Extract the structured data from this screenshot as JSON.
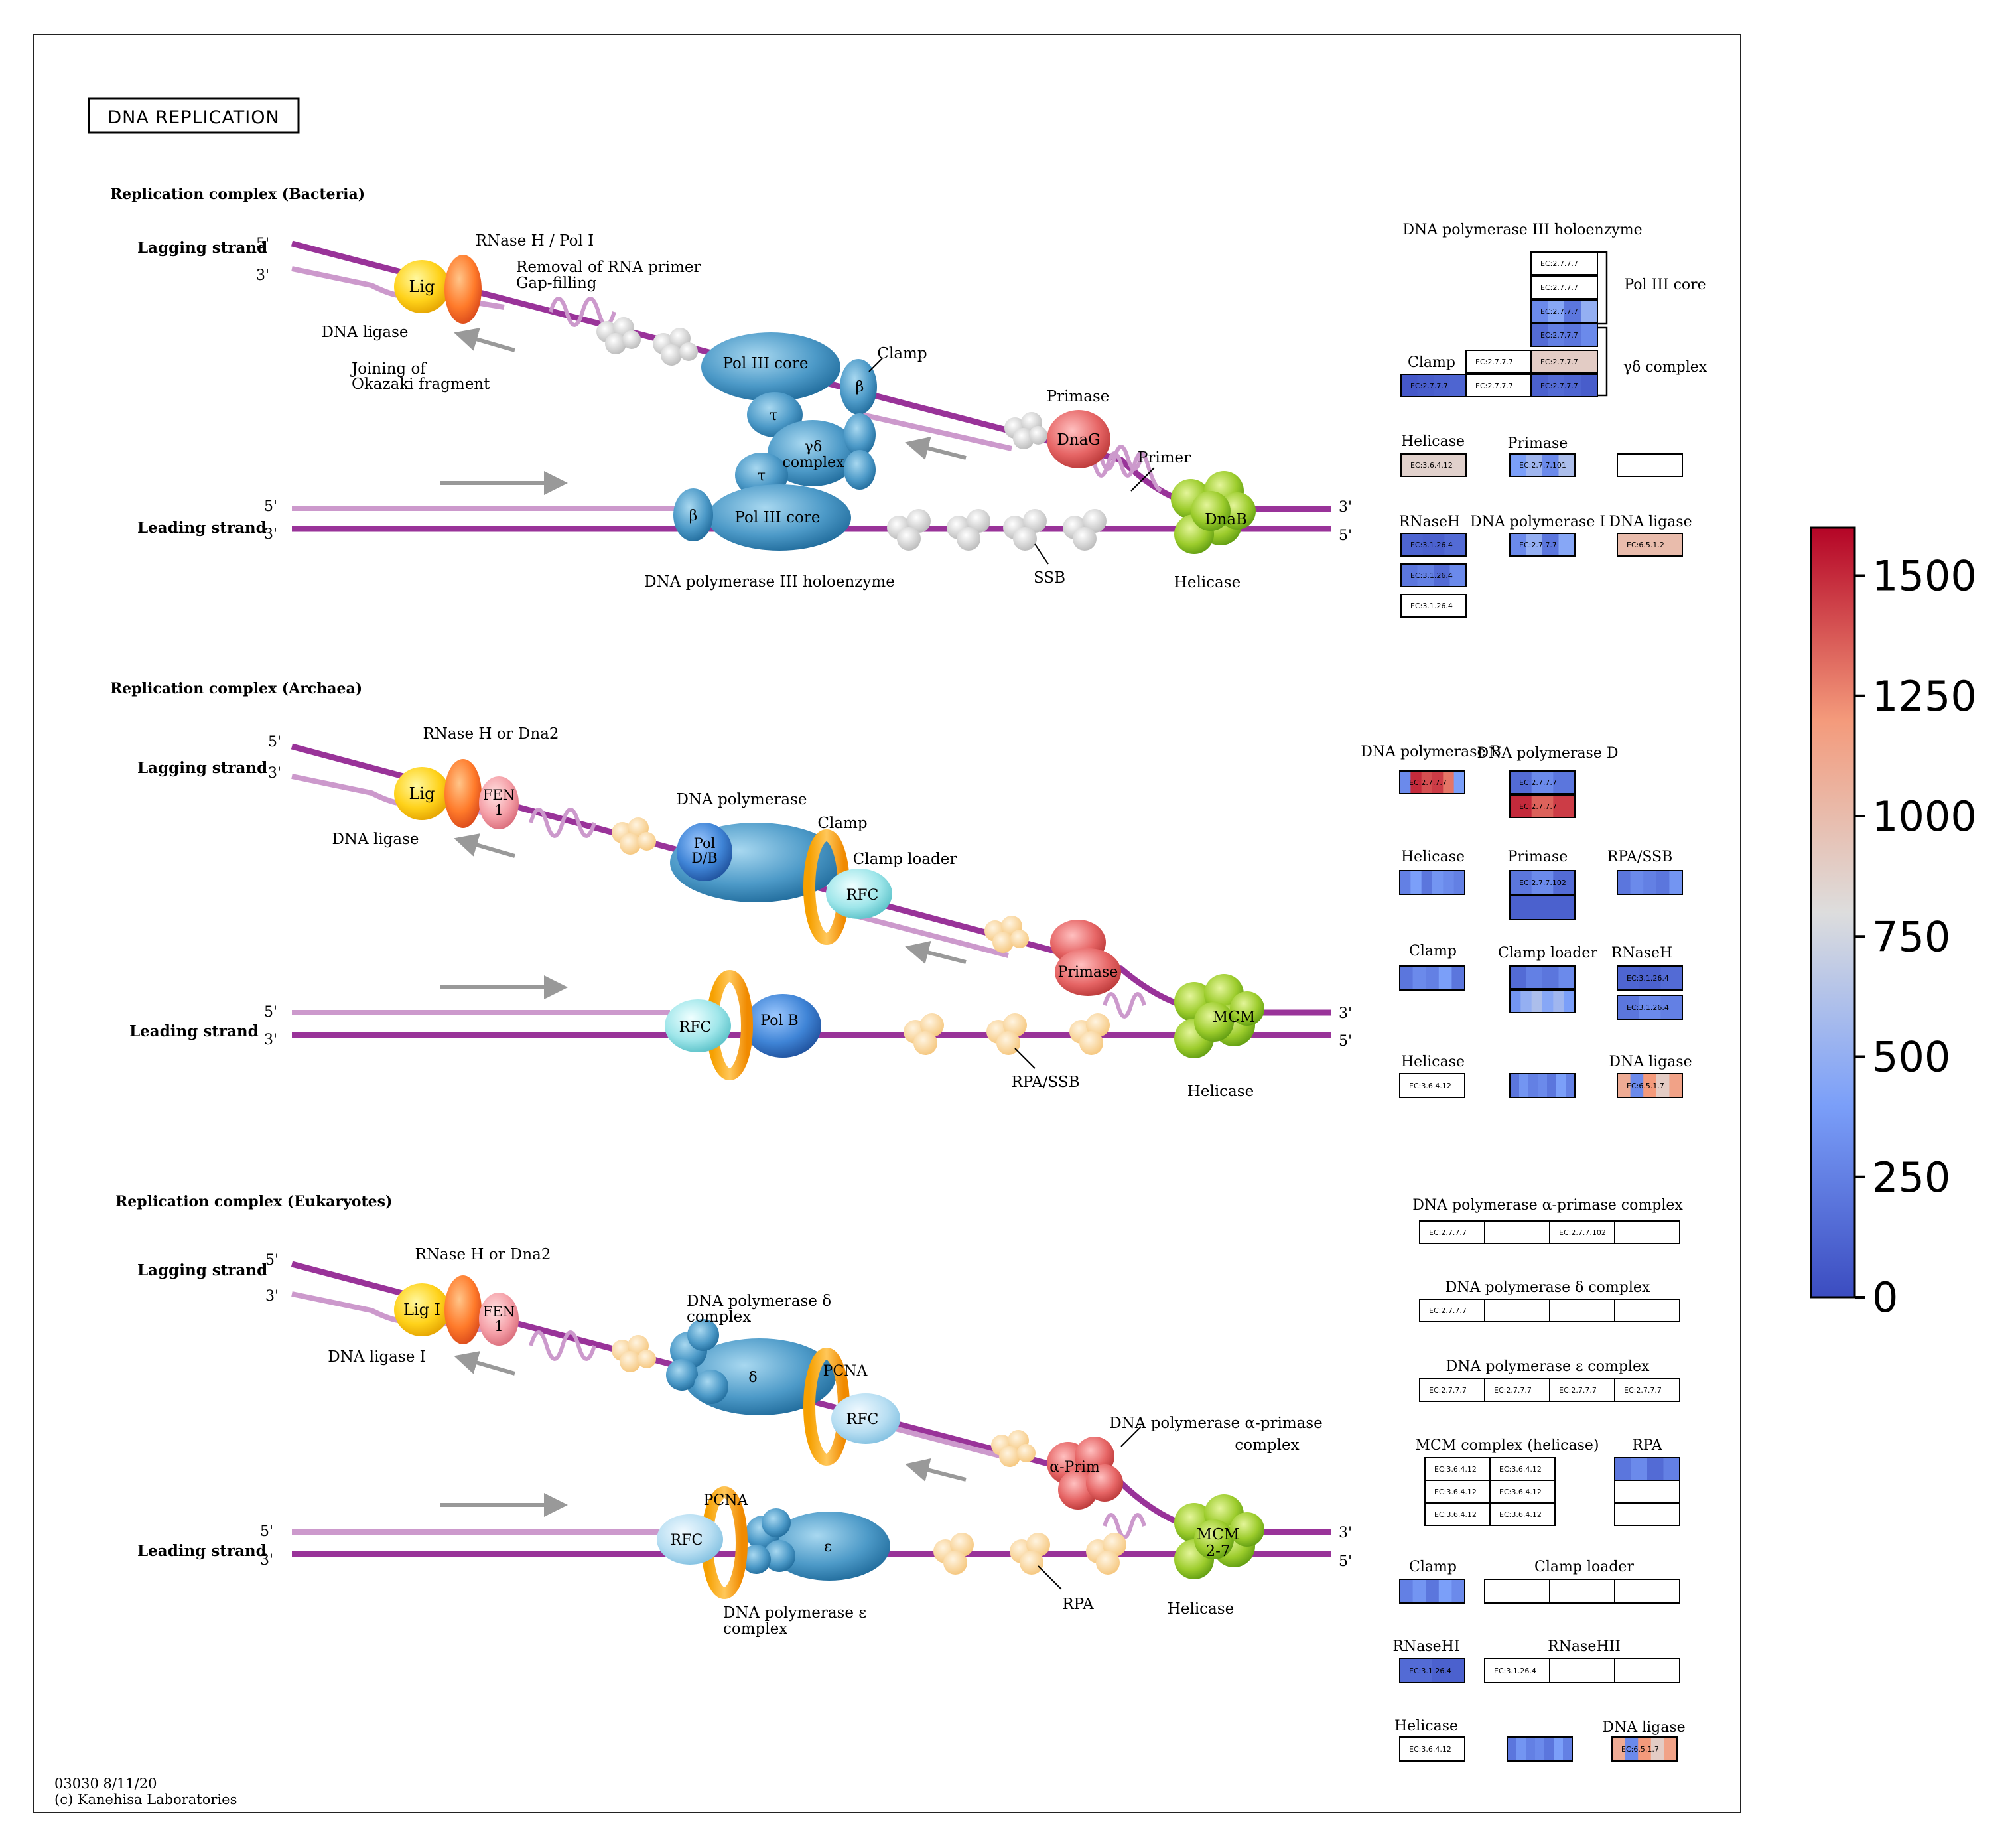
{
  "map_id": "03030 8/11/20",
  "copyright": "(c) Kanehisa Laboratories",
  "title": "DNA REPLICATION",
  "colors": {
    "strand_dark": "#993399",
    "strand_light": "#cc99cc",
    "arrow": "#999999",
    "low": "#3b4cc0",
    "mid": "#dddddd",
    "high": "#b40426"
  },
  "common": {
    "lagging": "Lagging strand",
    "leading": "Leading strand",
    "p5": "5'",
    "p3": "3'"
  },
  "bacteria": {
    "header": "Replication complex (Bacteria)",
    "labels": {
      "lig": "Lig",
      "dna_ligase": "DNA ligase",
      "rnase": "RNase H / Pol I",
      "removal": "Removal of RNA primer",
      "gapfill": "Gap-filling",
      "joining": "Joining of",
      "okazaki": "Okazaki fragment",
      "pol3_core": "Pol III core",
      "clamp": "Clamp",
      "beta": "β",
      "tau": "τ",
      "gd1": "γδ",
      "gd2": "complex",
      "primase": "Primase",
      "dnag": "DnaG",
      "primer": "Primer",
      "dnab": "DnaB",
      "helicase": "Helicase",
      "ssb": "SSB",
      "holo": "DNA polymerase III holoenzyme"
    },
    "legend": {
      "holo_title": "DNA polymerase III holoenzyme",
      "pol3core": "Pol III core",
      "gdcomplex": "γδ complex",
      "clamp": "Clamp",
      "helicase": "Helicase",
      "primase": "Primase",
      "rnaseh": "RNaseH",
      "pol1": "DNA polymerase I",
      "ligase": "DNA ligase"
    }
  },
  "archaea": {
    "header": "Replication complex (Archaea)",
    "labels": {
      "lig": "Lig",
      "fen": "FEN",
      "fen1": "1",
      "dna_ligase": "DNA ligase",
      "rnase": "RNase H or Dna2",
      "dnapol": "DNA polymerase",
      "pol": "Pol",
      "db": "D/B",
      "clamp": "Clamp",
      "loader": "Clamp loader",
      "rfc": "RFC",
      "primase": "Primase",
      "mcm": "MCM",
      "helicase": "Helicase",
      "polb": "Pol B",
      "rpassb": "RPA/SSB"
    },
    "legend": {
      "polb": "DNA polymerase B",
      "pold": "DNA polymerase D",
      "helicase": "Helicase",
      "primase": "Primase",
      "rpassb": "RPA/SSB",
      "clamp": "Clamp",
      "loader": "Clamp loader",
      "rnaseh": "RNaseH",
      "helicase2": "Helicase",
      "ligase": "DNA ligase"
    }
  },
  "eukaryotes": {
    "header": "Replication complex (Eukaryotes)",
    "labels": {
      "lig": "Lig I",
      "fen": "FEN",
      "fen1": "1",
      "dna_ligase": "DNA ligase I",
      "rnase": "RNase H or Dna2",
      "pold1": "DNA polymerase δ",
      "pold2": "complex",
      "delta": "δ",
      "pcna": "PCNA",
      "rfc": "RFC",
      "aprim": "α-Prim",
      "apc1": "DNA polymerase α-primase",
      "apc2": "complex",
      "mcm": "MCM",
      "mcm27": "2-7",
      "helicase": "Helicase",
      "eps": "ε",
      "pole1": "DNA polymerase ε",
      "pole2": "complex",
      "rpa": "RPA"
    },
    "legend": {
      "apc": "DNA polymerase α-primase complex",
      "dc": "DNA polymerase δ complex",
      "ec": "DNA polymerase ε complex",
      "mcm": "MCM complex (helicase)",
      "rpa": "RPA",
      "clamp": "Clamp",
      "loader": "Clamp loader",
      "rnasehi": "RNaseHI",
      "rnasehii": "RNaseHII",
      "helicase": "Helicase",
      "ligase": "DNA ligase"
    }
  },
  "ec": {
    "e2777": "EC:2.7.7.7",
    "e27101": "EC:2.7.7.101",
    "e27102": "EC:2.7.7.102",
    "e36412": "EC:3.6.4.12",
    "e31264": "EC:3.1.26.4",
    "e6512": "EC:6.5.1.2",
    "e6517": "EC:6.5.1.7"
  },
  "heat_boxes": {
    "b_core1": [
      0
    ],
    "b_core2": [
      0
    ],
    "b_core3": [
      300,
      450,
      200,
      500
    ],
    "b_core4": [
      150,
      250,
      200,
      300
    ],
    "b_gd1": [
      0
    ],
    "b_gd2": [
      900
    ],
    "b_gd3": [
      100,
      150,
      120,
      80
    ],
    "b_clamp": [
      60,
      80,
      100,
      120
    ],
    "b_clamp_w": [
      0
    ],
    "b_helicase": [
      870
    ],
    "b_primase": [
      400,
      550,
      300,
      600
    ],
    "b_empty": [
      0
    ],
    "b_rnaseh1": [
      120,
      100,
      150
    ],
    "b_rnaseh2": [
      200,
      250,
      150,
      300
    ],
    "b_rnaseh3": [
      0
    ],
    "b_pol1": [
      300,
      500,
      200,
      450
    ],
    "b_ligase": [
      1000
    ],
    "a_polb": [
      300,
      1500,
      1400,
      1450,
      1300,
      400
    ],
    "a_pold1": [
      150,
      300,
      200
    ],
    "a_pold2": [
      1500,
      1350,
      1450
    ],
    "a_helicase": [
      250,
      400,
      200,
      350,
      300,
      250
    ],
    "a_primase1": [
      200,
      300,
      150
    ],
    "a_primase2": [
      100
    ],
    "a_rpassb": [
      200,
      300,
      250,
      200,
      350
    ],
    "a_clamp": [
      200,
      300,
      250,
      400,
      200
    ],
    "a_loader1": [
      150,
      250,
      200,
      300
    ],
    "a_loader2": [
      350,
      500,
      600,
      450,
      550,
      400
    ],
    "a_rnaseh1": [
      120,
      100,
      150
    ],
    "a_rnaseh2": [
      200,
      300,
      250
    ],
    "a_helicase2": [
      0
    ],
    "a_mid": [
      200,
      350,
      250,
      300,
      200,
      400,
      250
    ],
    "a_ligase": [
      1100,
      300,
      1200,
      900,
      1150
    ],
    "e_apc": [
      0
    ],
    "e_dc": [
      0
    ],
    "e_ec": [
      0
    ],
    "e_mcm": [
      0
    ],
    "e_rpa1": [
      200,
      300,
      150,
      250
    ],
    "e_rpa2": [
      0
    ],
    "e_rpa3": [
      0
    ],
    "e_clamp": [
      250,
      350,
      200,
      400,
      300
    ],
    "e_loader": [
      0
    ],
    "e_rnasehi": [
      150,
      100
    ],
    "e_rnasehii": [
      0
    ],
    "e_helicase": [
      0
    ],
    "e_mid": [
      200,
      350,
      250,
      300,
      200,
      400,
      250
    ],
    "e_ligase": [
      1100,
      300,
      1200,
      900,
      1150
    ]
  },
  "colorbar": {
    "min": 0,
    "max": 1600,
    "ticks": [
      "0",
      "250",
      "500",
      "750",
      "1000",
      "1250",
      "1500"
    ],
    "tick_values": [
      0,
      250,
      500,
      750,
      1000,
      1250,
      1500
    ]
  }
}
